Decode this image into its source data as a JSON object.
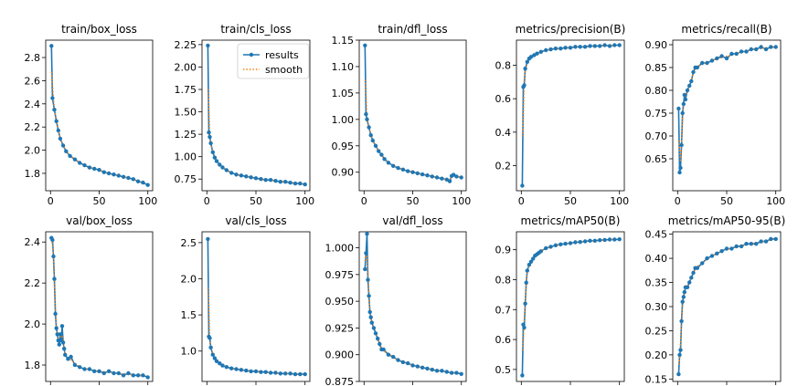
{
  "colors": {
    "results": "#1f77b4",
    "smooth": "#ff7f0e",
    "axis": "#000000"
  },
  "legend": {
    "results": "results",
    "smooth": "smooth",
    "placement": "top-right",
    "panel": "train/cls_loss"
  },
  "chart_data": [
    {
      "type": "line",
      "title": "train/box_loss",
      "xlim": [
        0,
        100
      ],
      "ylim": [
        1.65,
        2.95
      ],
      "xticks": [
        {
          "v": 0,
          "l": "0"
        },
        {
          "v": 50,
          "l": "50"
        },
        {
          "v": 100,
          "l": "100"
        }
      ],
      "yticks": [
        {
          "v": 1.8,
          "l": "1.8"
        },
        {
          "v": 2.0,
          "l": "2.0"
        },
        {
          "v": 2.2,
          "l": "2.2"
        },
        {
          "v": 2.4,
          "l": "2.4"
        },
        {
          "v": 2.6,
          "l": "2.6"
        },
        {
          "v": 2.8,
          "l": "2.8"
        }
      ],
      "series": [
        {
          "name": "results",
          "x": [
            1,
            2,
            4,
            6,
            8,
            10,
            13,
            16,
            20,
            25,
            30,
            35,
            40,
            45,
            50,
            55,
            60,
            65,
            70,
            75,
            80,
            85,
            90,
            95,
            100
          ],
          "y": [
            2.9,
            2.45,
            2.35,
            2.25,
            2.17,
            2.1,
            2.04,
            1.99,
            1.95,
            1.92,
            1.89,
            1.87,
            1.85,
            1.84,
            1.83,
            1.81,
            1.8,
            1.79,
            1.78,
            1.77,
            1.76,
            1.75,
            1.73,
            1.72,
            1.7
          ]
        }
      ]
    },
    {
      "type": "line",
      "title": "train/cls_loss",
      "xlim": [
        0,
        100
      ],
      "ylim": [
        0.62,
        2.3
      ],
      "xticks": [
        {
          "v": 0,
          "l": "0"
        },
        {
          "v": 50,
          "l": "50"
        },
        {
          "v": 100,
          "l": "100"
        }
      ],
      "yticks": [
        {
          "v": 0.75,
          "l": "0.75"
        },
        {
          "v": 1.0,
          "l": "1.00"
        },
        {
          "v": 1.25,
          "l": "1.25"
        },
        {
          "v": 1.5,
          "l": "1.50"
        },
        {
          "v": 1.75,
          "l": "1.75"
        },
        {
          "v": 2.0,
          "l": "2.00"
        },
        {
          "v": 2.25,
          "l": "2.25"
        }
      ],
      "series": [
        {
          "name": "results",
          "x": [
            1,
            2,
            3,
            4,
            6,
            8,
            10,
            13,
            16,
            20,
            25,
            30,
            35,
            40,
            45,
            50,
            55,
            60,
            65,
            70,
            75,
            80,
            85,
            90,
            95,
            100
          ],
          "y": [
            2.24,
            1.27,
            1.22,
            1.15,
            1.05,
            0.99,
            0.95,
            0.91,
            0.88,
            0.85,
            0.82,
            0.8,
            0.79,
            0.78,
            0.77,
            0.76,
            0.75,
            0.74,
            0.74,
            0.73,
            0.72,
            0.72,
            0.71,
            0.7,
            0.7,
            0.69
          ]
        }
      ]
    },
    {
      "type": "line",
      "title": "train/dfl_loss",
      "xlim": [
        0,
        100
      ],
      "ylim": [
        0.865,
        1.15
      ],
      "xticks": [
        {
          "v": 0,
          "l": "0"
        },
        {
          "v": 50,
          "l": "50"
        },
        {
          "v": 100,
          "l": "100"
        }
      ],
      "yticks": [
        {
          "v": 0.9,
          "l": "0.90"
        },
        {
          "v": 0.95,
          "l": "0.95"
        },
        {
          "v": 1.0,
          "l": "1.00"
        },
        {
          "v": 1.05,
          "l": "1.05"
        },
        {
          "v": 1.1,
          "l": "1.10"
        },
        {
          "v": 1.15,
          "l": "1.15"
        }
      ],
      "series": [
        {
          "name": "results",
          "x": [
            1,
            2,
            3,
            5,
            7,
            9,
            12,
            15,
            18,
            21,
            25,
            30,
            35,
            40,
            45,
            50,
            55,
            60,
            65,
            70,
            75,
            80,
            85,
            88,
            90,
            92,
            95,
            100
          ],
          "y": [
            1.14,
            1.01,
            1.0,
            0.985,
            0.97,
            0.96,
            0.95,
            0.94,
            0.933,
            0.925,
            0.918,
            0.912,
            0.908,
            0.905,
            0.902,
            0.9,
            0.898,
            0.896,
            0.894,
            0.892,
            0.89,
            0.888,
            0.886,
            0.883,
            0.893,
            0.895,
            0.892,
            0.89
          ]
        }
      ]
    },
    {
      "type": "line",
      "title": "metrics/precision(B)",
      "xlim": [
        0,
        100
      ],
      "ylim": [
        0.05,
        0.95
      ],
      "xticks": [
        {
          "v": 0,
          "l": "0"
        },
        {
          "v": 50,
          "l": "50"
        },
        {
          "v": 100,
          "l": "100"
        }
      ],
      "yticks": [
        {
          "v": 0.2,
          "l": "0.2"
        },
        {
          "v": 0.4,
          "l": "0.4"
        },
        {
          "v": 0.6,
          "l": "0.6"
        },
        {
          "v": 0.8,
          "l": "0.8"
        }
      ],
      "series": [
        {
          "name": "results",
          "x": [
            1,
            2,
            3,
            4,
            6,
            8,
            10,
            13,
            16,
            20,
            25,
            30,
            35,
            40,
            45,
            50,
            55,
            60,
            65,
            70,
            75,
            80,
            85,
            90,
            95,
            100
          ],
          "y": [
            0.08,
            0.67,
            0.68,
            0.78,
            0.82,
            0.84,
            0.85,
            0.86,
            0.87,
            0.88,
            0.89,
            0.895,
            0.9,
            0.9,
            0.905,
            0.905,
            0.91,
            0.91,
            0.91,
            0.915,
            0.915,
            0.915,
            0.92,
            0.915,
            0.92,
            0.92
          ]
        }
      ]
    },
    {
      "type": "line",
      "title": "metrics/recall(B)",
      "xlim": [
        0,
        100
      ],
      "ylim": [
        0.58,
        0.91
      ],
      "xticks": [
        {
          "v": 0,
          "l": "0"
        },
        {
          "v": 50,
          "l": "50"
        },
        {
          "v": 100,
          "l": "100"
        }
      ],
      "yticks": [
        {
          "v": 0.65,
          "l": "0.65"
        },
        {
          "v": 0.7,
          "l": "0.70"
        },
        {
          "v": 0.75,
          "l": "0.75"
        },
        {
          "v": 0.8,
          "l": "0.80"
        },
        {
          "v": 0.85,
          "l": "0.85"
        },
        {
          "v": 0.9,
          "l": "0.90"
        }
      ],
      "series": [
        {
          "name": "results",
          "x": [
            1,
            2,
            3,
            4,
            5,
            6,
            7,
            8,
            10,
            12,
            14,
            16,
            18,
            20,
            25,
            30,
            35,
            40,
            45,
            50,
            55,
            60,
            65,
            70,
            75,
            80,
            85,
            90,
            95,
            100
          ],
          "y": [
            0.76,
            0.62,
            0.63,
            0.68,
            0.75,
            0.77,
            0.79,
            0.78,
            0.8,
            0.81,
            0.82,
            0.84,
            0.85,
            0.85,
            0.86,
            0.86,
            0.865,
            0.87,
            0.875,
            0.87,
            0.88,
            0.88,
            0.885,
            0.885,
            0.89,
            0.89,
            0.895,
            0.89,
            0.895,
            0.895
          ]
        }
      ]
    },
    {
      "type": "line",
      "title": "val/box_loss",
      "xlim": [
        0,
        100
      ],
      "ylim": [
        1.72,
        2.45
      ],
      "xticks": [],
      "yticks": [
        {
          "v": 1.8,
          "l": "1.8"
        },
        {
          "v": 2.0,
          "l": "2.0"
        },
        {
          "v": 2.2,
          "l": "2.2"
        },
        {
          "v": 2.4,
          "l": "2.4"
        }
      ],
      "series": [
        {
          "name": "results",
          "x": [
            1,
            2,
            3,
            4,
            5,
            6,
            7,
            8,
            9,
            10,
            11,
            12,
            13,
            14,
            15,
            18,
            21,
            25,
            30,
            35,
            40,
            45,
            50,
            55,
            60,
            65,
            70,
            75,
            80,
            85,
            90,
            95,
            100
          ],
          "y": [
            2.42,
            2.41,
            2.33,
            2.22,
            2.05,
            1.98,
            1.95,
            1.92,
            1.9,
            1.95,
            1.92,
            1.99,
            1.91,
            1.88,
            1.85,
            1.83,
            1.84,
            1.8,
            1.79,
            1.78,
            1.78,
            1.77,
            1.77,
            1.76,
            1.77,
            1.76,
            1.76,
            1.75,
            1.76,
            1.75,
            1.75,
            1.75,
            1.74
          ]
        }
      ]
    },
    {
      "type": "line",
      "title": "val/cls_loss",
      "xlim": [
        0,
        100
      ],
      "ylim": [
        0.58,
        2.65
      ],
      "xticks": [],
      "yticks": [
        {
          "v": 1.0,
          "l": "1.0"
        },
        {
          "v": 1.5,
          "l": "1.5"
        },
        {
          "v": 2.0,
          "l": "2.0"
        },
        {
          "v": 2.5,
          "l": "2.5"
        }
      ],
      "series": [
        {
          "name": "results",
          "x": [
            1,
            2,
            3,
            4,
            6,
            8,
            10,
            13,
            16,
            20,
            25,
            30,
            35,
            40,
            45,
            50,
            55,
            60,
            65,
            70,
            75,
            80,
            85,
            90,
            95,
            100
          ],
          "y": [
            2.55,
            1.2,
            1.18,
            1.05,
            0.95,
            0.9,
            0.86,
            0.83,
            0.8,
            0.78,
            0.76,
            0.75,
            0.74,
            0.73,
            0.72,
            0.72,
            0.71,
            0.71,
            0.7,
            0.7,
            0.69,
            0.69,
            0.69,
            0.68,
            0.68,
            0.68
          ]
        }
      ]
    },
    {
      "type": "line",
      "title": "val/dfl_loss",
      "xlim": [
        0,
        100
      ],
      "ylim": [
        0.875,
        1.015
      ],
      "xticks": [],
      "yticks": [
        {
          "v": 0.875,
          "l": "0.875"
        },
        {
          "v": 0.9,
          "l": "0.900"
        },
        {
          "v": 0.925,
          "l": "0.925"
        },
        {
          "v": 0.95,
          "l": "0.950"
        },
        {
          "v": 0.975,
          "l": "0.975"
        },
        {
          "v": 1.0,
          "l": "1.000"
        }
      ],
      "series": [
        {
          "name": "results",
          "x": [
            1,
            2,
            3,
            4,
            5,
            6,
            7,
            8,
            10,
            12,
            14,
            16,
            18,
            20,
            25,
            30,
            35,
            40,
            45,
            50,
            55,
            60,
            65,
            70,
            75,
            80,
            85,
            90,
            95,
            100
          ],
          "y": [
            0.98,
            0.995,
            1.013,
            0.97,
            0.955,
            0.94,
            0.935,
            0.93,
            0.925,
            0.92,
            0.915,
            0.91,
            0.905,
            0.905,
            0.9,
            0.898,
            0.895,
            0.893,
            0.892,
            0.89,
            0.889,
            0.888,
            0.887,
            0.886,
            0.885,
            0.885,
            0.884,
            0.883,
            0.883,
            0.882
          ]
        }
      ]
    },
    {
      "type": "line",
      "title": "metrics/mAP50(B)",
      "xlim": [
        0,
        100
      ],
      "ylim": [
        0.46,
        0.96
      ],
      "xticks": [],
      "yticks": [
        {
          "v": 0.5,
          "l": "0.5"
        },
        {
          "v": 0.6,
          "l": "0.6"
        },
        {
          "v": 0.7,
          "l": "0.7"
        },
        {
          "v": 0.8,
          "l": "0.8"
        },
        {
          "v": 0.9,
          "l": "0.9"
        }
      ],
      "series": [
        {
          "name": "results",
          "x": [
            1,
            2,
            3,
            4,
            5,
            6,
            8,
            10,
            12,
            14,
            16,
            18,
            20,
            25,
            30,
            35,
            40,
            45,
            50,
            55,
            60,
            65,
            70,
            75,
            80,
            85,
            90,
            95,
            100
          ],
          "y": [
            0.48,
            0.65,
            0.64,
            0.72,
            0.79,
            0.83,
            0.85,
            0.86,
            0.87,
            0.88,
            0.885,
            0.89,
            0.895,
            0.905,
            0.91,
            0.915,
            0.918,
            0.92,
            0.922,
            0.925,
            0.926,
            0.928,
            0.93,
            0.93,
            0.932,
            0.933,
            0.934,
            0.934,
            0.935
          ]
        }
      ]
    },
    {
      "type": "line",
      "title": "metrics/mAP50-95(B)",
      "xlim": [
        0,
        100
      ],
      "ylim": [
        0.145,
        0.455
      ],
      "xticks": [],
      "yticks": [
        {
          "v": 0.15,
          "l": "0.15"
        },
        {
          "v": 0.2,
          "l": "0.20"
        },
        {
          "v": 0.25,
          "l": "0.25"
        },
        {
          "v": 0.3,
          "l": "0.30"
        },
        {
          "v": 0.35,
          "l": "0.35"
        },
        {
          "v": 0.4,
          "l": "0.40"
        },
        {
          "v": 0.45,
          "l": "0.45"
        }
      ],
      "series": [
        {
          "name": "results",
          "x": [
            1,
            2,
            3,
            4,
            5,
            6,
            7,
            8,
            10,
            12,
            14,
            16,
            18,
            20,
            25,
            30,
            35,
            40,
            45,
            50,
            55,
            60,
            65,
            70,
            75,
            80,
            85,
            90,
            95,
            100
          ],
          "y": [
            0.16,
            0.2,
            0.21,
            0.27,
            0.31,
            0.32,
            0.33,
            0.34,
            0.34,
            0.35,
            0.36,
            0.37,
            0.38,
            0.38,
            0.39,
            0.4,
            0.405,
            0.41,
            0.415,
            0.42,
            0.42,
            0.425,
            0.425,
            0.43,
            0.43,
            0.43,
            0.435,
            0.435,
            0.44,
            0.44
          ]
        }
      ]
    }
  ]
}
